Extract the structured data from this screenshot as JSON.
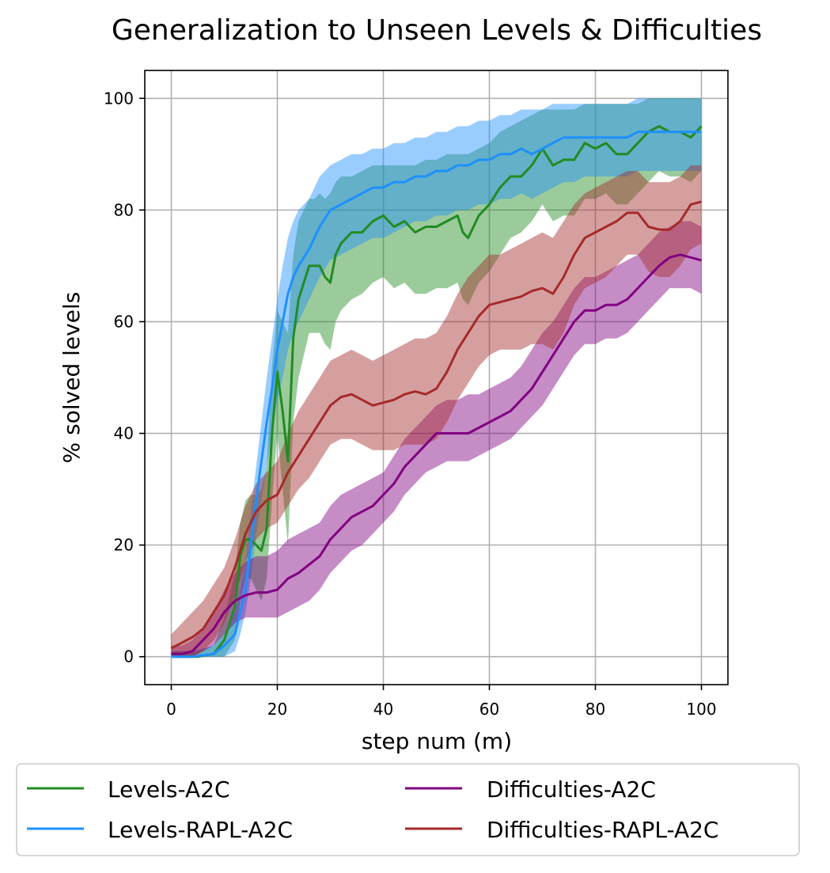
{
  "chart_data": {
    "type": "line",
    "title": "Generalization to Unseen Levels & Difficulties",
    "xlabel": "step num (m)",
    "ylabel": "% solved levels",
    "xlim": [
      -5,
      105
    ],
    "ylim": [
      -5,
      105
    ],
    "xticks": [
      0,
      20,
      40,
      60,
      80,
      100
    ],
    "yticks": [
      0,
      20,
      40,
      60,
      80,
      100
    ],
    "grid": true,
    "legend_position": "bottom",
    "series": [
      {
        "name": "Levels-A2C",
        "color": "#228b22",
        "x": [
          0,
          5,
          8,
          10,
          12,
          13,
          14,
          15,
          16,
          17,
          18,
          19,
          20,
          21,
          22,
          23,
          24,
          25,
          26,
          27,
          28,
          29,
          30,
          31,
          32,
          34,
          36,
          38,
          40,
          42,
          44,
          46,
          48,
          50,
          52,
          54,
          55,
          56,
          58,
          60,
          62,
          64,
          66,
          68,
          70,
          72,
          74,
          76,
          78,
          80,
          82,
          84,
          86,
          88,
          90,
          92,
          94,
          96,
          98,
          100
        ],
        "y": [
          0,
          0,
          0.5,
          3,
          9,
          18,
          21,
          21,
          20,
          19,
          23,
          40,
          51,
          44,
          35,
          57,
          64,
          67,
          70,
          70,
          70,
          68,
          67,
          72,
          74,
          76,
          76,
          78,
          79,
          77,
          78,
          76,
          77,
          77,
          78,
          79,
          76,
          75,
          79,
          81,
          84,
          86,
          86,
          88,
          91,
          88,
          89,
          89,
          92,
          91,
          92,
          90,
          90,
          92,
          94,
          95,
          94,
          94,
          93,
          95
        ],
        "band_upper": [
          1,
          1,
          2,
          7,
          15,
          24,
          28,
          29,
          29,
          30,
          34,
          52,
          62,
          60,
          58,
          72,
          78,
          80,
          82,
          82,
          83,
          82,
          83,
          85,
          86,
          86,
          87,
          88,
          88,
          88,
          88,
          88,
          89,
          89,
          90,
          90,
          90,
          90,
          91,
          92,
          94,
          95,
          96,
          97,
          98,
          98,
          98,
          98,
          99,
          99,
          99,
          99,
          99,
          99,
          100,
          100,
          100,
          100,
          100,
          100
        ],
        "band_lower": [
          0,
          0,
          0,
          0,
          3,
          10,
          14,
          14,
          12,
          10,
          14,
          28,
          40,
          30,
          20,
          42,
          50,
          54,
          58,
          58,
          58,
          56,
          55,
          60,
          62,
          64,
          65,
          67,
          68,
          66,
          67,
          65,
          65,
          66,
          66,
          67,
          64,
          63,
          67,
          69,
          72,
          75,
          76,
          78,
          81,
          78,
          79,
          79,
          82,
          82,
          83,
          81,
          81,
          83,
          85,
          87,
          86,
          86,
          85,
          87
        ]
      },
      {
        "name": "Levels-RAPL-A2C",
        "color": "#1e90ff",
        "x": [
          0,
          4,
          8,
          10,
          12,
          13,
          14,
          15,
          16,
          17,
          18,
          19,
          20,
          21,
          22,
          23,
          24,
          26,
          28,
          30,
          32,
          34,
          36,
          38,
          40,
          42,
          44,
          46,
          48,
          50,
          52,
          54,
          56,
          58,
          60,
          62,
          64,
          66,
          68,
          70,
          72,
          74,
          76,
          78,
          80,
          82,
          84,
          86,
          88,
          90,
          92,
          94,
          96,
          98,
          100
        ],
        "y": [
          0,
          0,
          0.5,
          2,
          4,
          8,
          12,
          20,
          28,
          35,
          42,
          48,
          55,
          60,
          65,
          68,
          70,
          73,
          77,
          80,
          81,
          82,
          83,
          84,
          84,
          85,
          85,
          86,
          86,
          87,
          87,
          88,
          88,
          89,
          89,
          90,
          90,
          91,
          90,
          91,
          92,
          93,
          93,
          93,
          93,
          93,
          93,
          93,
          94,
          94,
          94,
          94,
          94,
          94,
          94
        ],
        "band_upper": [
          1,
          1,
          2,
          4,
          8,
          12,
          17,
          26,
          34,
          42,
          50,
          57,
          64,
          70,
          75,
          78,
          80,
          82,
          86,
          88,
          89,
          90,
          90,
          91,
          91,
          92,
          92,
          93,
          93,
          94,
          94,
          95,
          95,
          96,
          96,
          97,
          97,
          98,
          98,
          98,
          99,
          99,
          99,
          99,
          99,
          99,
          99,
          99,
          100,
          100,
          100,
          100,
          100,
          100,
          100
        ],
        "band_lower": [
          0,
          0,
          0,
          0,
          1,
          4,
          8,
          14,
          22,
          28,
          34,
          40,
          46,
          50,
          55,
          58,
          60,
          64,
          68,
          71,
          72,
          73,
          74,
          75,
          75,
          76,
          77,
          78,
          78,
          79,
          79,
          80,
          80,
          81,
          81,
          82,
          82,
          83,
          82,
          83,
          84,
          85,
          85,
          86,
          86,
          86,
          86,
          86,
          87,
          87,
          87,
          87,
          87,
          87,
          87
        ]
      },
      {
        "name": "Difficulties-A2C",
        "color": "#800080",
        "x": [
          0,
          2,
          4,
          6,
          8,
          10,
          12,
          14,
          16,
          18,
          20,
          22,
          24,
          26,
          28,
          30,
          32,
          34,
          36,
          38,
          40,
          42,
          44,
          46,
          48,
          50,
          52,
          54,
          56,
          58,
          60,
          62,
          64,
          66,
          68,
          70,
          72,
          74,
          76,
          78,
          80,
          82,
          84,
          86,
          88,
          90,
          92,
          94,
          96,
          98,
          100
        ],
        "y": [
          0.5,
          0.5,
          1,
          3,
          5,
          8,
          10,
          11,
          11.5,
          11.5,
          12,
          14,
          15,
          16.5,
          18,
          21,
          23,
          25,
          26,
          27,
          29,
          31,
          34,
          36,
          38,
          40,
          40,
          40,
          40,
          41,
          42,
          43,
          44,
          46,
          48,
          51,
          54,
          57,
          60,
          62,
          62,
          63,
          63,
          64,
          66,
          68,
          70,
          71.5,
          72,
          71.5,
          71
        ],
        "band_upper": [
          2,
          2,
          3,
          5,
          8,
          12,
          15,
          17,
          18,
          18,
          19,
          21,
          22,
          23,
          24,
          27,
          29,
          30,
          31,
          32,
          33,
          36,
          39,
          41,
          43,
          45,
          46,
          46,
          47,
          47,
          48,
          49,
          50,
          52,
          55,
          58,
          60,
          63,
          66,
          68,
          68,
          69,
          70,
          71,
          72,
          74,
          76,
          77,
          78,
          78,
          77
        ],
        "band_lower": [
          0,
          0,
          0,
          1,
          2,
          4,
          6,
          7,
          7,
          7,
          7,
          8,
          9,
          10,
          12,
          15,
          17,
          19,
          20,
          22,
          24,
          26,
          29,
          31,
          33,
          34,
          35,
          35,
          35,
          36,
          37,
          38,
          39,
          41,
          43,
          45,
          48,
          51,
          54,
          56,
          56,
          57,
          57,
          58,
          60,
          62,
          64,
          66,
          66,
          66,
          65
        ]
      },
      {
        "name": "Difficulties-RAPL-A2C",
        "color": "#a52a2a",
        "x": [
          0,
          2,
          4,
          6,
          8,
          10,
          12,
          14,
          16,
          18,
          20,
          22,
          24,
          26,
          28,
          30,
          32,
          34,
          36,
          38,
          40,
          42,
          44,
          46,
          48,
          50,
          52,
          54,
          56,
          58,
          60,
          62,
          64,
          66,
          68,
          70,
          72,
          74,
          76,
          78,
          80,
          82,
          84,
          86,
          88,
          90,
          92,
          94,
          96,
          98,
          100
        ],
        "y": [
          1.5,
          2.5,
          3.5,
          5,
          8,
          11,
          16,
          22,
          26,
          28,
          29,
          33,
          36,
          39,
          42,
          45,
          46.5,
          47,
          46,
          45,
          45.5,
          46,
          47,
          47.5,
          47,
          48,
          51,
          55,
          58,
          61,
          63,
          63.5,
          64,
          64.5,
          65.5,
          66,
          65,
          68,
          72,
          75,
          76,
          77,
          78,
          79.5,
          79.5,
          77,
          76.5,
          76.5,
          78,
          81,
          81.5
        ],
        "band_upper": [
          4,
          6,
          8,
          10,
          13,
          16,
          21,
          27,
          31,
          33,
          35,
          40,
          44,
          47,
          50,
          53,
          54,
          55,
          54,
          53,
          54,
          55,
          56,
          57,
          57,
          58,
          61,
          65,
          68,
          70,
          72,
          72,
          73,
          74,
          75,
          76,
          75,
          78,
          81,
          83,
          84,
          85,
          86,
          87,
          87,
          85,
          85,
          85,
          86,
          88,
          88
        ],
        "band_lower": [
          0,
          0,
          0,
          1,
          3,
          6,
          11,
          17,
          21,
          23,
          24,
          27,
          30,
          32,
          35,
          38,
          39,
          39,
          38,
          37,
          37,
          37,
          38,
          38,
          38,
          39,
          42,
          46,
          49,
          52,
          54,
          55,
          55,
          55,
          56,
          56,
          55,
          58,
          63,
          66,
          67,
          68,
          70,
          72,
          72,
          69,
          68,
          68,
          70,
          73,
          74
        ]
      }
    ]
  }
}
